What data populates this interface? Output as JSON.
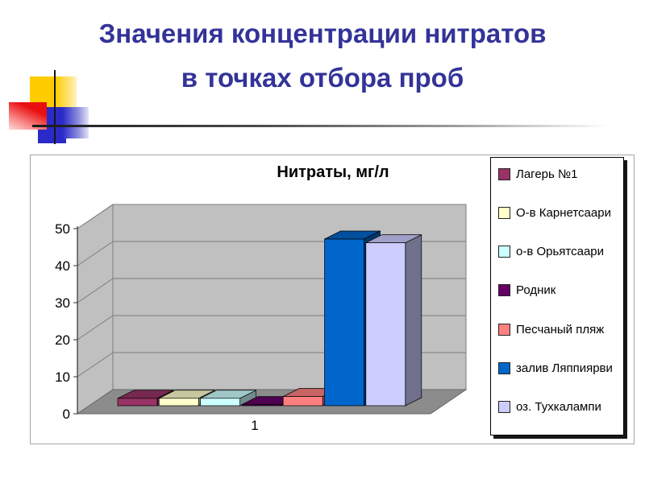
{
  "slide": {
    "title_line1": "Значения концентрации нитратов",
    "title_line2": "в точках отбора проб",
    "title_color": "#333399"
  },
  "chart_data": {
    "type": "bar",
    "variant": "3d-column",
    "title": "Нитраты, мг/л",
    "categories": [
      "1"
    ],
    "series": [
      {
        "name": "Лагерь №1",
        "color": "#993366",
        "values": [
          2
        ]
      },
      {
        "name": "О-в Карнетсаари",
        "color": "#FFFFCC",
        "values": [
          2
        ]
      },
      {
        "name": "о-в Орьятсаари",
        "color": "#CCFFFF",
        "values": [
          2
        ]
      },
      {
        "name": "Родник",
        "color": "#660066",
        "values": [
          0.3
        ]
      },
      {
        "name": "Песчаный пляж",
        "color": "#FF8080",
        "values": [
          2.5
        ]
      },
      {
        "name": "залив Ляппиярви",
        "color": "#0066CC",
        "values": [
          45
        ]
      },
      {
        "name": "оз. Тухкалампи",
        "color": "#CCCCFF",
        "values": [
          44
        ]
      }
    ],
    "xlabel": "",
    "ylabel": "",
    "ylim": [
      0,
      50
    ],
    "yticks": [
      0,
      10,
      20,
      30,
      40,
      50
    ],
    "grid": true,
    "legend_position": "right",
    "wall_color": "#C0C0C0",
    "floor_color": "#8C8C8C",
    "gridline_color": "#7d7d7d"
  }
}
